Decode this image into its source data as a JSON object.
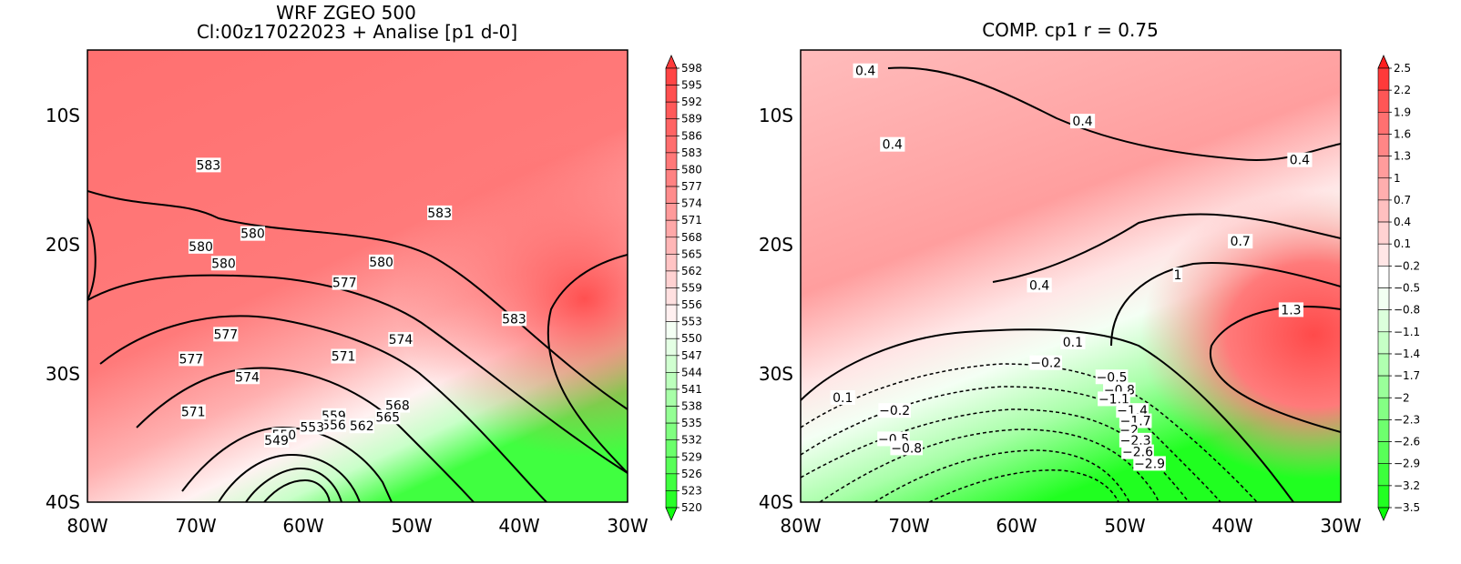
{
  "panels": [
    {
      "id": "left",
      "title_line1": "WRF ZGEO 500",
      "title_line2": "Cl:00z17022023 + Analise  [p1 d-0]",
      "lon_ticks": [
        "80W",
        "70W",
        "60W",
        "50W",
        "40W",
        "30W"
      ],
      "lat_ticks": [
        "10S",
        "20S",
        "30S",
        "40S"
      ],
      "colorbar_labels": [
        "598",
        "595",
        "592",
        "589",
        "586",
        "583",
        "580",
        "577",
        "574",
        "571",
        "568",
        "565",
        "562",
        "559",
        "556",
        "553",
        "550",
        "547",
        "544",
        "541",
        "538",
        "535",
        "532",
        "529",
        "526",
        "523",
        "520"
      ],
      "contour_labels": [
        {
          "text": "583",
          "lon": -68.8,
          "lat": -13.9
        },
        {
          "text": "583",
          "lon": -47.4,
          "lat": -17.6
        },
        {
          "text": "583",
          "lon": -40.5,
          "lat": -25.8
        },
        {
          "text": "580",
          "lon": -69.5,
          "lat": -20.2
        },
        {
          "text": "580",
          "lon": -64.7,
          "lat": -19.2
        },
        {
          "text": "580",
          "lon": -67.4,
          "lat": -21.5
        },
        {
          "text": "580",
          "lon": -52.8,
          "lat": -21.4
        },
        {
          "text": "577",
          "lon": -56.2,
          "lat": -23.0
        },
        {
          "text": "577",
          "lon": -67.2,
          "lat": -27.0
        },
        {
          "text": "577",
          "lon": -70.4,
          "lat": -28.9
        },
        {
          "text": "574",
          "lon": -51.0,
          "lat": -27.4
        },
        {
          "text": "574",
          "lon": -65.2,
          "lat": -30.3
        },
        {
          "text": "571",
          "lon": -56.3,
          "lat": -28.7
        },
        {
          "text": "571",
          "lon": -70.2,
          "lat": -33.0
        },
        {
          "text": "568",
          "lon": -51.3,
          "lat": -32.5
        },
        {
          "text": "565",
          "lon": -52.2,
          "lat": -33.4
        },
        {
          "text": "562",
          "lon": -54.6,
          "lat": -34.1
        },
        {
          "text": "559",
          "lon": -57.2,
          "lat": -33.3
        },
        {
          "text": "556",
          "lon": -57.2,
          "lat": -34.0
        },
        {
          "text": "553",
          "lon": -59.2,
          "lat": -34.2
        },
        {
          "text": "550",
          "lon": -61.8,
          "lat": -34.8
        },
        {
          "text": "549",
          "lon": -62.5,
          "lat": -35.2
        }
      ]
    },
    {
      "id": "right",
      "title_line1": "COMP. cp1  r =  0.75",
      "lon_ticks": [
        "80W",
        "70W",
        "60W",
        "50W",
        "40W",
        "30W"
      ],
      "lat_ticks": [
        "10S",
        "20S",
        "30S",
        "40S"
      ],
      "colorbar_labels": [
        "2.5",
        "2.2",
        "1.9",
        "1.6",
        "1.3",
        "1",
        "0.7",
        "0.4",
        "0.1",
        "−0.2",
        "−0.5",
        "−0.8",
        "−1.1",
        "−1.4",
        "−1.7",
        "−2",
        "−2.3",
        "−2.6",
        "−2.9",
        "−3.2",
        "−3.5"
      ],
      "contour_labels": [
        {
          "text": "0.4",
          "lon": -74.0,
          "lat": -6.6
        },
        {
          "text": "0.4",
          "lon": -53.9,
          "lat": -10.5
        },
        {
          "text": "0.4",
          "lon": -71.5,
          "lat": -12.3
        },
        {
          "text": "0.4",
          "lon": -33.8,
          "lat": -13.5
        },
        {
          "text": "0.4",
          "lon": -57.9,
          "lat": -23.2
        },
        {
          "text": "0.7",
          "lon": -39.3,
          "lat": -19.8
        },
        {
          "text": "1",
          "lon": -45.1,
          "lat": -22.4
        },
        {
          "text": "1.3",
          "lon": -34.6,
          "lat": -25.1
        },
        {
          "text": "0.1",
          "lon": -76.1,
          "lat": -31.9
        },
        {
          "text": "0.1",
          "lon": -54.8,
          "lat": -27.6
        },
        {
          "text": "−0.2",
          "lon": -71.3,
          "lat": -32.9
        },
        {
          "text": "−0.2",
          "lon": -57.3,
          "lat": -29.2
        },
        {
          "text": "−0.5",
          "lon": -71.4,
          "lat": -35.1
        },
        {
          "text": "−0.5",
          "lon": -51.2,
          "lat": -30.3
        },
        {
          "text": "−0.8",
          "lon": -70.2,
          "lat": -35.8
        },
        {
          "text": "−0.8",
          "lon": -50.5,
          "lat": -31.3
        },
        {
          "text": "−1.1",
          "lon": -51.0,
          "lat": -32.0
        },
        {
          "text": "−1.4",
          "lon": -49.3,
          "lat": -32.9
        },
        {
          "text": "−1.7",
          "lon": -49.0,
          "lat": -33.7
        },
        {
          "text": "−2",
          "lon": -49.6,
          "lat": -34.4
        },
        {
          "text": "−2.3",
          "lon": -49.0,
          "lat": -35.2
        },
        {
          "text": "−2.6",
          "lon": -48.8,
          "lat": -36.1
        },
        {
          "text": "−2.9",
          "lon": -47.7,
          "lat": -37.0
        }
      ]
    }
  ],
  "colors": {
    "left_ramp": [
      "#ff3b3b",
      "#ff4545",
      "#ff5050",
      "#ff5a5a",
      "#ff6464",
      "#ff6e6e",
      "#ff7878",
      "#ff8282",
      "#ff8c8c",
      "#ff9a9a",
      "#ffa8a8",
      "#ffb6b6",
      "#ffc4c4",
      "#ffd2d2",
      "#ffe0e0",
      "#fff0f0",
      "#f4fff4",
      "#e4ffe4",
      "#d0ffd0",
      "#bcffbc",
      "#a8ffa8",
      "#94ff94",
      "#80ff80",
      "#6cff6c",
      "#58ff58",
      "#40ff40",
      "#28ff28",
      "#10ff10"
    ],
    "right_ramp": [
      "#ff1e1e",
      "#ff3a3a",
      "#ff5656",
      "#ff7070",
      "#ff8686",
      "#ff9c9c",
      "#ffaeae",
      "#ffc0c0",
      "#ffd2d2",
      "#ffe6e6",
      "#ffffff",
      "#f2fff2",
      "#dcffdc",
      "#c6ffc6",
      "#b0ffb0",
      "#9aff9a",
      "#84ff84",
      "#6eff6e",
      "#58ff58",
      "#3cff3c",
      "#22ff22",
      "#08ff08"
    ]
  }
}
